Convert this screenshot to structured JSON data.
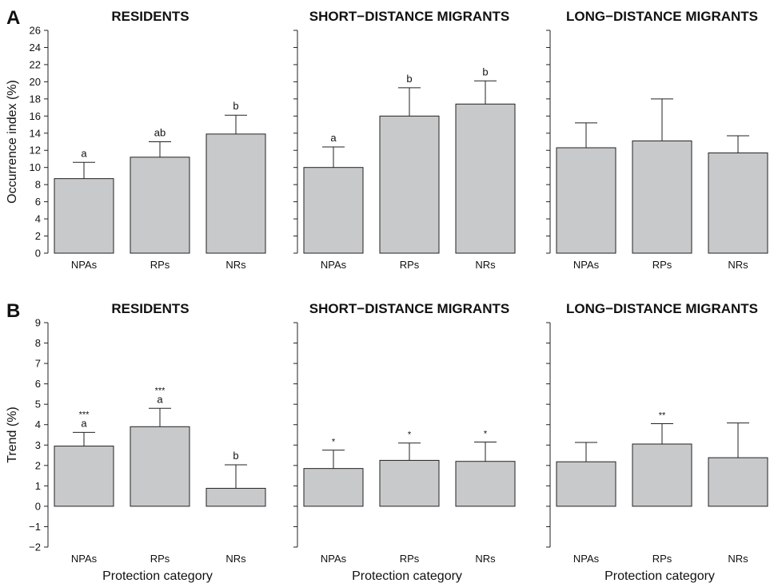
{
  "figure": {
    "panel_labels": [
      "A",
      "B"
    ],
    "bar_color": "#c8c9cb",
    "edge_color": "#222222"
  },
  "chart_data": [
    {
      "type": "bar",
      "row": "A",
      "col": 0,
      "title": "RESIDENTS",
      "ylabel": "Occurrence index (%)",
      "xlabel": "",
      "ylim": [
        0,
        26
      ],
      "yticks": [
        0,
        2,
        4,
        6,
        8,
        10,
        12,
        14,
        16,
        18,
        20,
        22,
        24,
        26
      ],
      "categories": [
        "NPAs",
        "RPs",
        "NRs"
      ],
      "values": [
        8.7,
        11.2,
        13.9
      ],
      "errors": [
        1.9,
        1.8,
        2.2
      ],
      "letters": [
        "a",
        "ab",
        "b"
      ],
      "stars": [
        "",
        "",
        ""
      ]
    },
    {
      "type": "bar",
      "row": "A",
      "col": 1,
      "title": "SHORT−DISTANCE MIGRANTS",
      "ylabel": "",
      "xlabel": "",
      "ylim": [
        0,
        26
      ],
      "yticks": [
        0,
        2,
        4,
        6,
        8,
        10,
        12,
        14,
        16,
        18,
        20,
        22,
        24,
        26
      ],
      "categories": [
        "NPAs",
        "RPs",
        "NRs"
      ],
      "values": [
        10.0,
        16.0,
        17.4
      ],
      "errors": [
        2.4,
        3.3,
        2.7
      ],
      "letters": [
        "a",
        "b",
        "b"
      ],
      "stars": [
        "",
        "",
        ""
      ]
    },
    {
      "type": "bar",
      "row": "A",
      "col": 2,
      "title": "LONG−DISTANCE MIGRANTS",
      "ylabel": "",
      "xlabel": "",
      "ylim": [
        0,
        26
      ],
      "yticks": [
        0,
        2,
        4,
        6,
        8,
        10,
        12,
        14,
        16,
        18,
        20,
        22,
        24,
        26
      ],
      "categories": [
        "NPAs",
        "RPs",
        "NRs"
      ],
      "values": [
        12.3,
        13.1,
        11.7
      ],
      "errors": [
        2.9,
        4.9,
        2.0
      ],
      "letters": [
        "",
        "",
        ""
      ],
      "stars": [
        "",
        "",
        ""
      ]
    },
    {
      "type": "bar",
      "row": "B",
      "col": 0,
      "title": "RESIDENTS",
      "ylabel": "Trend (%)",
      "xlabel": "Protection category",
      "ylim": [
        -2,
        9
      ],
      "yticks": [
        -2,
        -1,
        0,
        1,
        2,
        3,
        4,
        5,
        6,
        7,
        8,
        9
      ],
      "categories": [
        "NPAs",
        "RPs",
        "NRs"
      ],
      "values": [
        2.95,
        3.9,
        0.88
      ],
      "errors": [
        0.67,
        0.9,
        1.15
      ],
      "letters": [
        "a",
        "a",
        "b"
      ],
      "stars": [
        "***",
        "***",
        ""
      ]
    },
    {
      "type": "bar",
      "row": "B",
      "col": 1,
      "title": "SHORT−DISTANCE MIGRANTS",
      "ylabel": "",
      "xlabel": "Protection category",
      "ylim": [
        -2,
        9
      ],
      "yticks": [
        -2,
        -1,
        0,
        1,
        2,
        3,
        4,
        5,
        6,
        7,
        8,
        9
      ],
      "categories": [
        "NPAs",
        "RPs",
        "NRs"
      ],
      "values": [
        1.85,
        2.25,
        2.2
      ],
      "errors": [
        0.9,
        0.85,
        0.95
      ],
      "letters": [
        "",
        "",
        ""
      ],
      "stars": [
        "*",
        "*",
        "*"
      ]
    },
    {
      "type": "bar",
      "row": "B",
      "col": 2,
      "title": "LONG−DISTANCE MIGRANTS",
      "ylabel": "",
      "xlabel": "Protection category",
      "ylim": [
        -2,
        9
      ],
      "yticks": [
        -2,
        -1,
        0,
        1,
        2,
        3,
        4,
        5,
        6,
        7,
        8,
        9
      ],
      "categories": [
        "NPAs",
        "RPs",
        "NRs"
      ],
      "values": [
        2.18,
        3.05,
        2.38
      ],
      "errors": [
        0.95,
        1.0,
        1.7
      ],
      "letters": [
        "",
        "",
        ""
      ],
      "stars": [
        "",
        "**",
        ""
      ]
    }
  ]
}
